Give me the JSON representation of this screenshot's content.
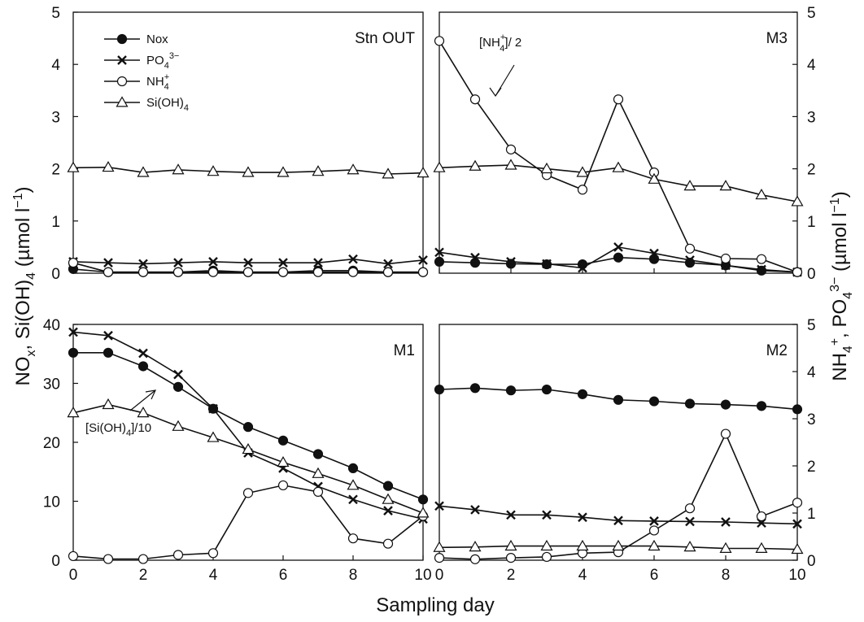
{
  "chart_data": {
    "type": "line",
    "xlabel": "Sampling day",
    "ylabel_left": "NOx, Si(OH)4 (µmol l−1)",
    "ylabel_right": "NH4+, PO43− (µmol l−1)",
    "x_ticks": [
      0,
      2,
      4,
      6,
      8,
      10
    ],
    "legend": {
      "placement": "top-left of Stn OUT panel",
      "entries": [
        {
          "series": "Nox",
          "label": "Nox",
          "marker": "filled-circle"
        },
        {
          "series": "PO4",
          "label": "PO4 3−",
          "marker": "cross"
        },
        {
          "series": "NH4",
          "label": "NH4 +",
          "marker": "open-circle"
        },
        {
          "series": "SiOH4",
          "label": "Si(OH)4",
          "marker": "open-triangle"
        }
      ]
    },
    "panels": [
      {
        "id": "stn-out",
        "title": "Stn OUT",
        "position": "top-left",
        "ylim": [
          0,
          5
        ],
        "y_ticks": [
          0,
          1,
          2,
          3,
          4,
          5
        ],
        "tick_side": "left",
        "x": [
          0,
          1,
          2,
          3,
          4,
          5,
          6,
          7,
          8,
          9,
          10
        ],
        "series": [
          {
            "name": "Nox",
            "marker": "filled-circle",
            "values": [
              0.08,
              0.02,
              0.02,
              0.02,
              0.05,
              0.02,
              0.02,
              0.05,
              0.05,
              0.02,
              0.02
            ]
          },
          {
            "name": "PO4",
            "marker": "cross",
            "values": [
              0.22,
              0.2,
              0.18,
              0.2,
              0.22,
              0.2,
              0.2,
              0.2,
              0.27,
              0.18,
              0.25
            ]
          },
          {
            "name": "NH4",
            "marker": "open-circle",
            "values": [
              0.2,
              0.02,
              0.02,
              0.02,
              0.02,
              0.02,
              0.02,
              0.02,
              0.02,
              0.02,
              0.02
            ]
          },
          {
            "name": "SiOH4",
            "marker": "open-triangle",
            "values": [
              2.02,
              2.03,
              1.93,
              1.98,
              1.95,
              1.93,
              1.93,
              1.95,
              1.98,
              1.9,
              1.92
            ]
          }
        ]
      },
      {
        "id": "m3",
        "title": "M3",
        "position": "top-right",
        "ylim": [
          0,
          5
        ],
        "y_ticks": [
          0,
          1,
          2,
          3,
          4,
          5
        ],
        "tick_side": "right",
        "x": [
          0,
          1,
          2,
          3,
          4,
          5,
          6,
          7,
          8,
          9,
          10
        ],
        "annotation": {
          "text_before": "[NH",
          "sup": "+",
          "sub": "4",
          "text_after": "]/ 2"
        },
        "series": [
          {
            "name": "Nox",
            "marker": "filled-circle",
            "values": [
              0.22,
              0.2,
              0.18,
              0.17,
              0.17,
              0.3,
              0.27,
              0.2,
              0.15,
              0.05,
              0.02
            ]
          },
          {
            "name": "PO4",
            "marker": "cross",
            "values": [
              0.4,
              0.3,
              0.22,
              0.18,
              0.1,
              0.5,
              0.38,
              0.25,
              0.15,
              0.07,
              0.02
            ]
          },
          {
            "name": "NH4",
            "marker": "open-circle",
            "values": [
              4.45,
              3.33,
              2.37,
              1.88,
              1.6,
              3.33,
              1.93,
              0.47,
              0.28,
              0.27,
              0.02
            ]
          },
          {
            "name": "SiOH4",
            "marker": "open-triangle",
            "values": [
              2.02,
              2.05,
              2.07,
              2.0,
              1.93,
              2.02,
              1.8,
              1.67,
              1.67,
              1.5,
              1.37
            ]
          }
        ]
      },
      {
        "id": "m1",
        "title": "M1",
        "position": "bottom-left",
        "ylim": [
          0,
          40
        ],
        "y_ticks": [
          0,
          10,
          20,
          30,
          40
        ],
        "tick_side": "left",
        "x": [
          0,
          1,
          2,
          3,
          4,
          5,
          6,
          7,
          8,
          9,
          10
        ],
        "annotation": {
          "text_before": "[Si(OH)",
          "sub": "4",
          "text_after": "]/10"
        },
        "series": [
          {
            "name": "Nox",
            "marker": "filled-circle",
            "values": [
              35.2,
              35.2,
              32.9,
              29.4,
              25.7,
              22.6,
              20.3,
              18.0,
              15.6,
              12.6,
              10.3
            ]
          },
          {
            "name": "PO4",
            "marker": "cross",
            "values": [
              38.7,
              38.1,
              35.1,
              31.5,
              25.7,
              18.2,
              15.6,
              12.5,
              10.3,
              8.4,
              7.0
            ]
          },
          {
            "name": "NH4",
            "marker": "open-circle",
            "values": [
              0.7,
              0.2,
              0.2,
              0.9,
              1.2,
              11.4,
              12.7,
              11.6,
              3.7,
              2.8,
              7.5
            ]
          },
          {
            "name": "SiOH4",
            "marker": "open-triangle",
            "values": [
              25.0,
              26.4,
              25.0,
              22.7,
              20.8,
              18.8,
              16.6,
              14.7,
              12.7,
              10.3,
              8.0
            ]
          }
        ]
      },
      {
        "id": "m2",
        "title": "M2",
        "position": "bottom-right",
        "ylim": [
          0,
          5
        ],
        "y_ticks": [
          0,
          1,
          2,
          3,
          4,
          5
        ],
        "tick_side": "right",
        "x": [
          0,
          1,
          2,
          3,
          4,
          5,
          6,
          7,
          8,
          9,
          10
        ],
        "series": [
          {
            "name": "Nox",
            "marker": "filled-circle",
            "values": [
              3.62,
              3.65,
              3.6,
              3.62,
              3.52,
              3.4,
              3.37,
              3.32,
              3.3,
              3.27,
              3.2
            ]
          },
          {
            "name": "PO4",
            "marker": "cross",
            "values": [
              1.15,
              1.07,
              0.96,
              0.96,
              0.91,
              0.84,
              0.83,
              0.82,
              0.81,
              0.79,
              0.77
            ]
          },
          {
            "name": "NH4",
            "marker": "open-circle",
            "values": [
              0.05,
              0.02,
              0.05,
              0.07,
              0.15,
              0.17,
              0.63,
              1.1,
              2.68,
              0.93,
              1.22
            ]
          },
          {
            "name": "SiOH4",
            "marker": "open-triangle",
            "values": [
              0.27,
              0.28,
              0.3,
              0.3,
              0.3,
              0.3,
              0.3,
              0.28,
              0.25,
              0.25,
              0.23
            ]
          }
        ]
      }
    ]
  }
}
